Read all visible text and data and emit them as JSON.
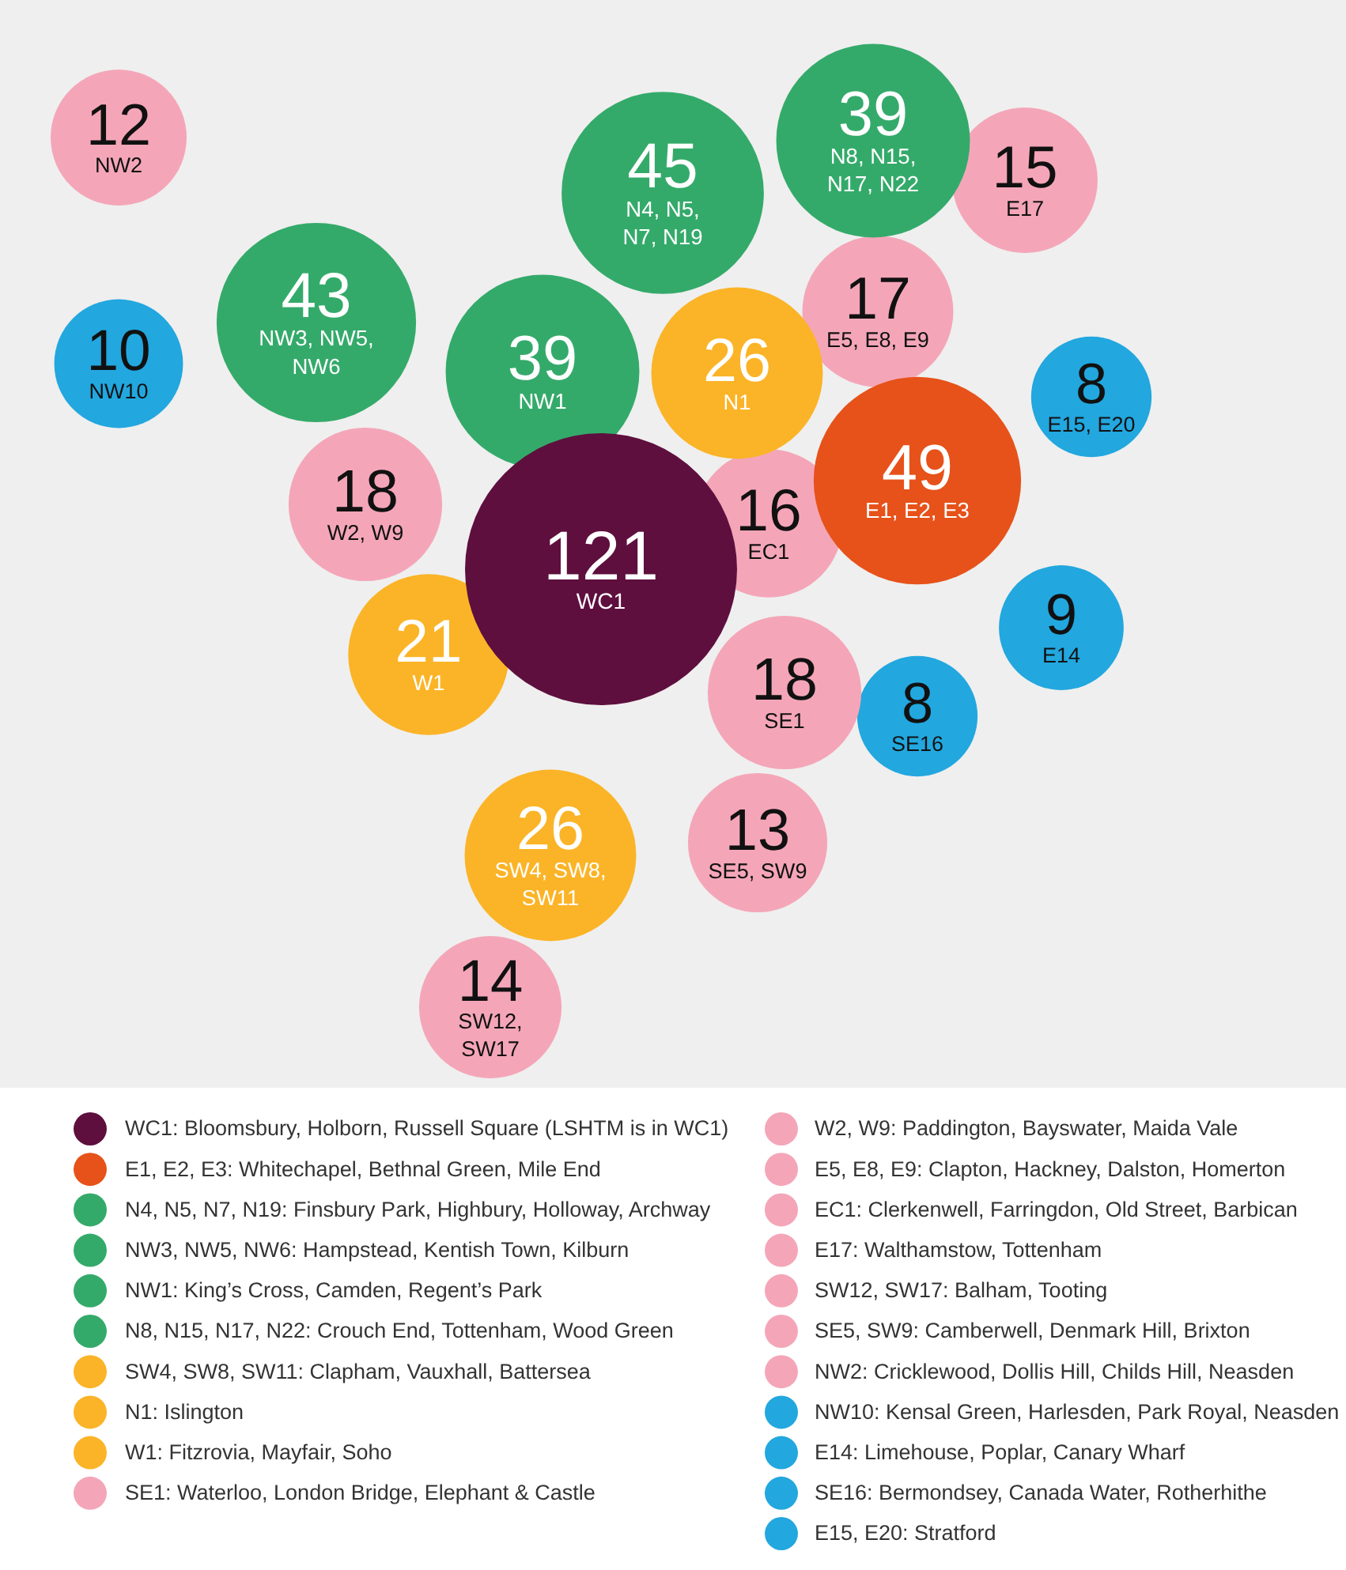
{
  "chart_data": {
    "type": "other",
    "categories": [
      "WC1",
      "E1, E2, E3",
      "N4, N5,\nN7, N19",
      "NW3, NW5,\nNW6",
      "NW1",
      "N8, N15,\nN17, N22",
      "SW4, SW8,\nSW11",
      "N1",
      "W1",
      "SE1",
      "W2, W9",
      "E5, E8, E9",
      "EC1",
      "E17",
      "SW12,\nSW17",
      "SE5, SW9",
      "NW2",
      "NW10",
      "E14",
      "SE16",
      "E15, E20"
    ],
    "series": [
      {
        "name": "WC1: Bloomsbury, Holborn, Russell Square (LSHTM is in WC1)",
        "color": "#5e0f3e",
        "values": [
          121,
          null,
          null,
          null,
          null,
          null,
          null,
          null,
          null,
          null,
          null,
          null,
          null,
          null,
          null,
          null,
          null,
          null,
          null,
          null,
          null
        ]
      },
      {
        "name": "E1, E2, E3: Whitechapel, Bethnal Green, Mile End",
        "color": "#e6521a",
        "values": [
          null,
          49,
          null,
          null,
          null,
          null,
          null,
          null,
          null,
          null,
          null,
          null,
          null,
          null,
          null,
          null,
          null,
          null,
          null,
          null,
          null
        ]
      },
      {
        "name": "N4, N5, N7, N19: Finsbury Park, Highbury, Holloway, Archway",
        "color": "#34aa6a",
        "values": [
          null,
          null,
          45,
          null,
          null,
          null,
          null,
          null,
          null,
          null,
          null,
          null,
          null,
          null,
          null,
          null,
          null,
          null,
          null,
          null,
          null
        ]
      },
      {
        "name": "NW3, NW5, NW6: Hampstead, Kentish Town, Kilburn",
        "color": "#34aa6a",
        "values": [
          null,
          null,
          null,
          43,
          null,
          null,
          null,
          null,
          null,
          null,
          null,
          null,
          null,
          null,
          null,
          null,
          null,
          null,
          null,
          null,
          null
        ]
      },
      {
        "name": "NW1: King’s Cross, Camden, Regent’s Park",
        "color": "#34aa6a",
        "values": [
          null,
          null,
          null,
          null,
          39,
          null,
          null,
          null,
          null,
          null,
          null,
          null,
          null,
          null,
          null,
          null,
          null,
          null,
          null,
          null,
          null
        ]
      },
      {
        "name": "N8, N15, N17, N22: Crouch End, Tottenham, Wood Green",
        "color": "#34aa6a",
        "values": [
          null,
          null,
          null,
          null,
          null,
          39,
          null,
          null,
          null,
          null,
          null,
          null,
          null,
          null,
          null,
          null,
          null,
          null,
          null,
          null,
          null
        ]
      },
      {
        "name": "SW4, SW8, SW11: Clapham, Vauxhall, Battersea",
        "color": "#fbb427",
        "values": [
          null,
          null,
          null,
          null,
          null,
          null,
          26,
          null,
          null,
          null,
          null,
          null,
          null,
          null,
          null,
          null,
          null,
          null,
          null,
          null,
          null
        ]
      },
      {
        "name": "N1: Islington",
        "color": "#fbb427",
        "values": [
          null,
          null,
          null,
          null,
          null,
          null,
          null,
          26,
          null,
          null,
          null,
          null,
          null,
          null,
          null,
          null,
          null,
          null,
          null,
          null,
          null
        ]
      },
      {
        "name": "W1: Fitzrovia, Mayfair, Soho",
        "color": "#fbb427",
        "values": [
          null,
          null,
          null,
          null,
          null,
          null,
          null,
          null,
          21,
          null,
          null,
          null,
          null,
          null,
          null,
          null,
          null,
          null,
          null,
          null,
          null
        ]
      },
      {
        "name": "SE1: Waterloo, London Bridge, Elephant & Castle",
        "color": "#f4a6b8",
        "values": [
          null,
          null,
          null,
          null,
          null,
          null,
          null,
          null,
          null,
          18,
          null,
          null,
          null,
          null,
          null,
          null,
          null,
          null,
          null,
          null,
          null
        ]
      },
      {
        "name": "W2, W9: Paddington, Bayswater, Maida Vale",
        "color": "#f4a6b8",
        "values": [
          null,
          null,
          null,
          null,
          null,
          null,
          null,
          null,
          null,
          null,
          18,
          null,
          null,
          null,
          null,
          null,
          null,
          null,
          null,
          null,
          null
        ]
      },
      {
        "name": "E5, E8, E9: Clapton, Hackney, Dalston, Homerton",
        "color": "#f4a6b8",
        "values": [
          null,
          null,
          null,
          null,
          null,
          null,
          null,
          null,
          null,
          null,
          null,
          17,
          null,
          null,
          null,
          null,
          null,
          null,
          null,
          null,
          null
        ]
      },
      {
        "name": "EC1: Clerkenwell, Farringdon, Old Street, Barbican",
        "color": "#f4a6b8",
        "values": [
          null,
          null,
          null,
          null,
          null,
          null,
          null,
          null,
          null,
          null,
          null,
          null,
          16,
          null,
          null,
          null,
          null,
          null,
          null,
          null,
          null
        ]
      },
      {
        "name": "E17: Walthamstow, Tottenham",
        "color": "#f4a6b8",
        "values": [
          null,
          null,
          null,
          null,
          null,
          null,
          null,
          null,
          null,
          null,
          null,
          null,
          null,
          15,
          null,
          null,
          null,
          null,
          null,
          null,
          null
        ]
      },
      {
        "name": "SW12, SW17: Balham, Tooting",
        "color": "#f4a6b8",
        "values": [
          null,
          null,
          null,
          null,
          null,
          null,
          null,
          null,
          null,
          null,
          null,
          null,
          null,
          null,
          14,
          null,
          null,
          null,
          null,
          null,
          null
        ]
      },
      {
        "name": "SE5, SW9: Camberwell, Denmark Hill, Brixton",
        "color": "#f4a6b8",
        "values": [
          null,
          null,
          null,
          null,
          null,
          null,
          null,
          null,
          null,
          null,
          null,
          null,
          null,
          null,
          null,
          13,
          null,
          null,
          null,
          null,
          null
        ]
      },
      {
        "name": "NW2: Cricklewood, Dollis Hill, Childs Hill, Neasden",
        "color": "#f4a6b8",
        "values": [
          null,
          null,
          null,
          null,
          null,
          null,
          null,
          null,
          null,
          null,
          null,
          null,
          null,
          null,
          null,
          null,
          12,
          null,
          null,
          null,
          null
        ]
      },
      {
        "name": "NW10: Kensal Green, Harlesden, Park Royal, Neasden",
        "color": "#22a7df",
        "values": [
          null,
          null,
          null,
          null,
          null,
          null,
          null,
          null,
          null,
          null,
          null,
          null,
          null,
          null,
          null,
          null,
          null,
          10,
          null,
          null,
          null
        ]
      },
      {
        "name": "E14: Limehouse, Poplar, Canary Wharf",
        "color": "#22a7df",
        "values": [
          null,
          null,
          null,
          null,
          null,
          null,
          null,
          null,
          null,
          null,
          null,
          null,
          null,
          null,
          null,
          null,
          null,
          null,
          9,
          null,
          null
        ]
      },
      {
        "name": "SE16: Bermondsey, Canada Water, Rotherhithe",
        "color": "#22a7df",
        "values": [
          null,
          null,
          null,
          null,
          null,
          null,
          null,
          null,
          null,
          null,
          null,
          null,
          null,
          null,
          null,
          null,
          null,
          null,
          null,
          8,
          null
        ]
      },
      {
        "name": "E15, E20: Stratford",
        "color": "#22a7df",
        "values": [
          null,
          null,
          null,
          null,
          null,
          null,
          null,
          null,
          null,
          null,
          null,
          null,
          null,
          null,
          null,
          null,
          null,
          null,
          null,
          null,
          8
        ]
      }
    ],
    "data_labels": true,
    "legend": "bottom"
  }
}
